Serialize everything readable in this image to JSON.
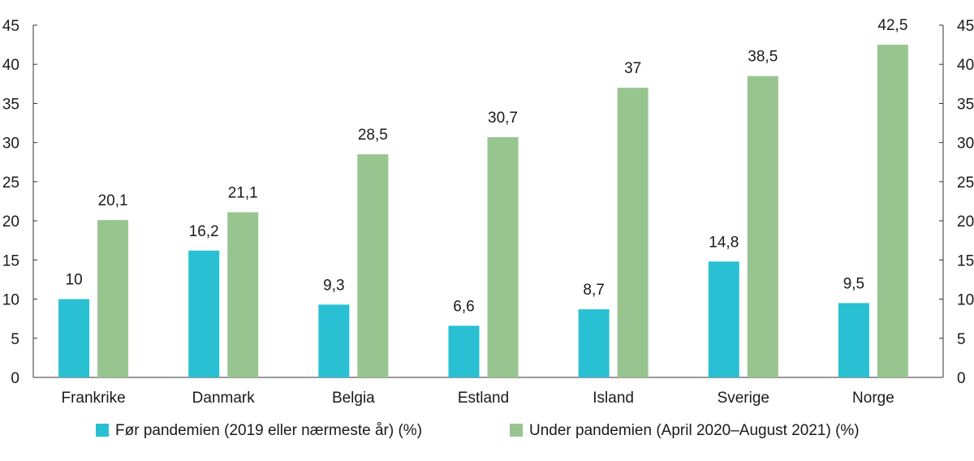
{
  "chart_data": {
    "type": "bar",
    "title": "",
    "xlabel": "",
    "ylabel": "",
    "categories": [
      "Frankrike",
      "Danmark",
      "Belgia",
      "Estland",
      "Island",
      "Sverige",
      "Norge"
    ],
    "series": [
      {
        "name": "Før pandemien (2019 eller nærmeste år) (%)",
        "color": "#29c0d3",
        "values": [
          10,
          16.2,
          9.3,
          6.6,
          8.7,
          14.8,
          9.5
        ],
        "labels": [
          "10",
          "16,2",
          "9,3",
          "6,6",
          "8,7",
          "14,8",
          "9,5"
        ]
      },
      {
        "name": "Under pandemien (April 2020–August 2021) (%)",
        "color": "#98c58f",
        "values": [
          20.1,
          21.1,
          28.5,
          30.7,
          37,
          38.5,
          42.5
        ],
        "labels": [
          "20,1",
          "21,1",
          "28,5",
          "30,7",
          "37",
          "38,5",
          "42,5"
        ]
      }
    ],
    "ylim": [
      0,
      45
    ],
    "yticks": [
      "0",
      "5",
      "10",
      "15",
      "20",
      "25",
      "30",
      "35",
      "40",
      "45"
    ],
    "y_axes": [
      "left",
      "right"
    ],
    "grid": false,
    "legend_position": "bottom"
  }
}
